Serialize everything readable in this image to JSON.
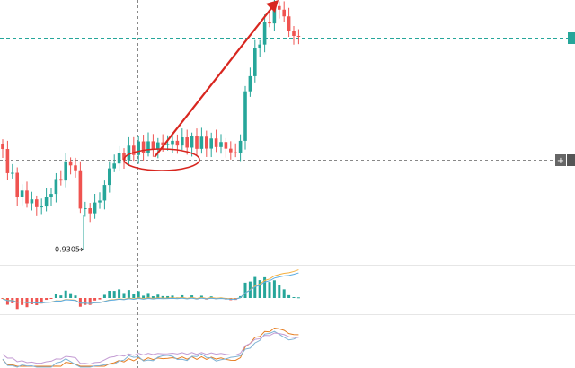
{
  "annotation": {
    "low_label": "0.9305"
  }
}
